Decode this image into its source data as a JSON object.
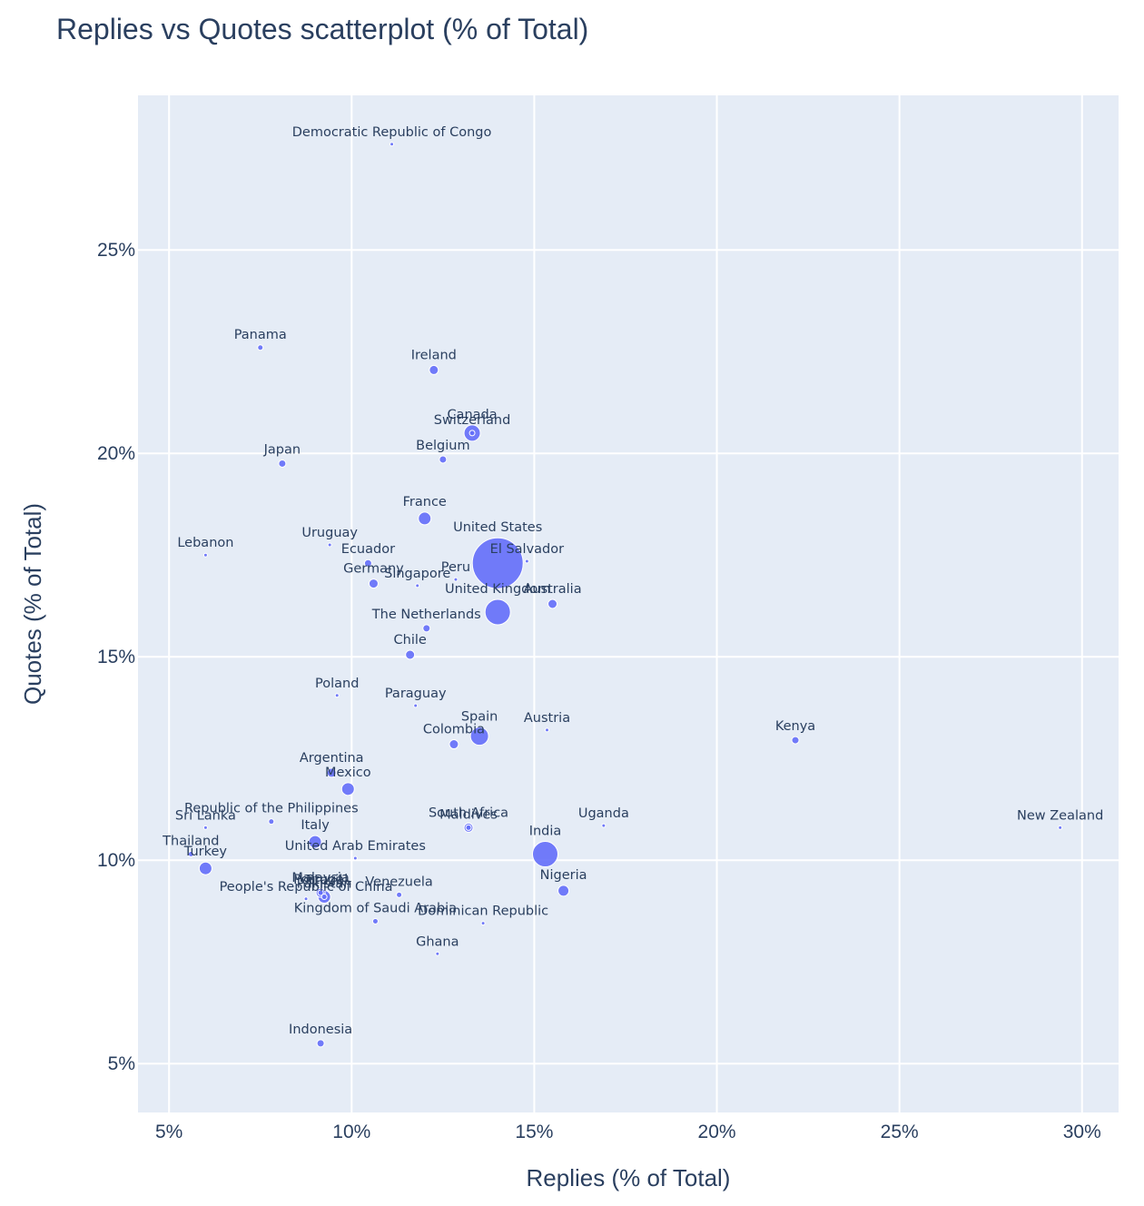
{
  "chart_data": {
    "type": "scatter",
    "title": "Replies vs Quotes scatterplot (% of Total)",
    "xlabel": "Replies (% of Total)",
    "ylabel": "Quotes (% of Total)",
    "xlim": [
      4.15,
      31.0
    ],
    "ylim": [
      3.8,
      28.8
    ],
    "x_ticks": [
      5,
      10,
      15,
      20,
      25,
      30
    ],
    "x_tick_labels": [
      "5%",
      "10%",
      "15%",
      "20%",
      "25%",
      "30%"
    ],
    "y_ticks": [
      5,
      10,
      15,
      20,
      25
    ],
    "y_tick_labels": [
      "5%",
      "10%",
      "15%",
      "20%",
      "25%"
    ],
    "grid": true,
    "marker_color": "#636efa",
    "points": [
      {
        "label": "Democratic Republic of Congo",
        "x": 11.1,
        "y": 27.6,
        "size": 2
      },
      {
        "label": "Panama",
        "x": 7.5,
        "y": 22.6,
        "size": 3
      },
      {
        "label": "Ireland",
        "x": 12.25,
        "y": 22.05,
        "size": 5
      },
      {
        "label": "Switzerland",
        "x": 13.3,
        "y": 20.5,
        "size": 3
      },
      {
        "label": "Canada",
        "x": 13.3,
        "y": 20.5,
        "size": 9
      },
      {
        "label": "Japan",
        "x": 8.1,
        "y": 19.75,
        "size": 4
      },
      {
        "label": "Belgium",
        "x": 12.5,
        "y": 19.85,
        "size": 4
      },
      {
        "label": "France",
        "x": 12.0,
        "y": 18.4,
        "size": 7
      },
      {
        "label": "United States",
        "x": 14.0,
        "y": 17.3,
        "size": 28
      },
      {
        "label": "Lebanon",
        "x": 6.0,
        "y": 17.5,
        "size": 2
      },
      {
        "label": "Uruguay",
        "x": 9.4,
        "y": 17.75,
        "size": 2
      },
      {
        "label": "Ecuador",
        "x": 10.45,
        "y": 17.3,
        "size": 4
      },
      {
        "label": "El Salvador",
        "x": 14.8,
        "y": 17.35,
        "size": 2
      },
      {
        "label": "Germany",
        "x": 10.6,
        "y": 16.8,
        "size": 5
      },
      {
        "label": "Peru",
        "x": 12.85,
        "y": 16.9,
        "size": 2
      },
      {
        "label": "Singapore",
        "x": 11.8,
        "y": 16.75,
        "size": 2
      },
      {
        "label": "United Kingdom",
        "x": 14.0,
        "y": 16.1,
        "size": 14
      },
      {
        "label": "Australia",
        "x": 15.5,
        "y": 16.3,
        "size": 5
      },
      {
        "label": "The Netherlands",
        "x": 12.05,
        "y": 15.7,
        "size": 4
      },
      {
        "label": "Chile",
        "x": 11.6,
        "y": 15.05,
        "size": 5
      },
      {
        "label": "Poland",
        "x": 9.6,
        "y": 14.05,
        "size": 2
      },
      {
        "label": "Paraguay",
        "x": 11.75,
        "y": 13.8,
        "size": 2
      },
      {
        "label": "Spain",
        "x": 13.5,
        "y": 13.05,
        "size": 10
      },
      {
        "label": "Austria",
        "x": 15.35,
        "y": 13.2,
        "size": 2
      },
      {
        "label": "Colombia",
        "x": 12.8,
        "y": 12.85,
        "size": 5
      },
      {
        "label": "Kenya",
        "x": 22.15,
        "y": 12.95,
        "size": 4
      },
      {
        "label": "Argentina",
        "x": 9.45,
        "y": 12.15,
        "size": 5
      },
      {
        "label": "Mexico",
        "x": 9.9,
        "y": 11.75,
        "size": 7
      },
      {
        "label": "Maldives",
        "x": 13.2,
        "y": 10.8,
        "size": 3
      },
      {
        "label": "South Africa",
        "x": 13.2,
        "y": 10.8,
        "size": 5
      },
      {
        "label": "Uganda",
        "x": 16.9,
        "y": 10.85,
        "size": 2
      },
      {
        "label": "New Zealand",
        "x": 29.4,
        "y": 10.8,
        "size": 2
      },
      {
        "label": "Republic of the Philippines",
        "x": 7.8,
        "y": 10.95,
        "size": 3
      },
      {
        "label": "Sri Lanka",
        "x": 6.0,
        "y": 10.8,
        "size": 2
      },
      {
        "label": "Italy",
        "x": 9.0,
        "y": 10.45,
        "size": 7
      },
      {
        "label": "India",
        "x": 15.3,
        "y": 10.15,
        "size": 14
      },
      {
        "label": "Thailand",
        "x": 5.6,
        "y": 10.15,
        "size": 3
      },
      {
        "label": "Turkey",
        "x": 6.0,
        "y": 9.8,
        "size": 7
      },
      {
        "label": "United Arab Emirates",
        "x": 10.1,
        "y": 10.05,
        "size": 2
      },
      {
        "label": "Nigeria",
        "x": 15.8,
        "y": 9.25,
        "size": 6
      },
      {
        "label": "Malaysia",
        "x": 9.15,
        "y": 9.2,
        "size": 5
      },
      {
        "label": "Portugal",
        "x": 9.15,
        "y": 9.2,
        "size": 3
      },
      {
        "label": "Brazil",
        "x": 9.25,
        "y": 9.1,
        "size": 7
      },
      {
        "label": "Pakistan",
        "x": 9.25,
        "y": 9.1,
        "size": 3
      },
      {
        "label": "People's Republic of China",
        "x": 8.75,
        "y": 9.05,
        "size": 2
      },
      {
        "label": "Venezuela",
        "x": 11.3,
        "y": 9.15,
        "size": 3
      },
      {
        "label": "Kingdom of Saudi Arabia",
        "x": 10.65,
        "y": 8.5,
        "size": 3
      },
      {
        "label": "Dominican Republic",
        "x": 13.6,
        "y": 8.45,
        "size": 2
      },
      {
        "label": "Ghana",
        "x": 12.35,
        "y": 7.7,
        "size": 2
      },
      {
        "label": "Indonesia",
        "x": 9.15,
        "y": 5.5,
        "size": 4
      }
    ]
  }
}
